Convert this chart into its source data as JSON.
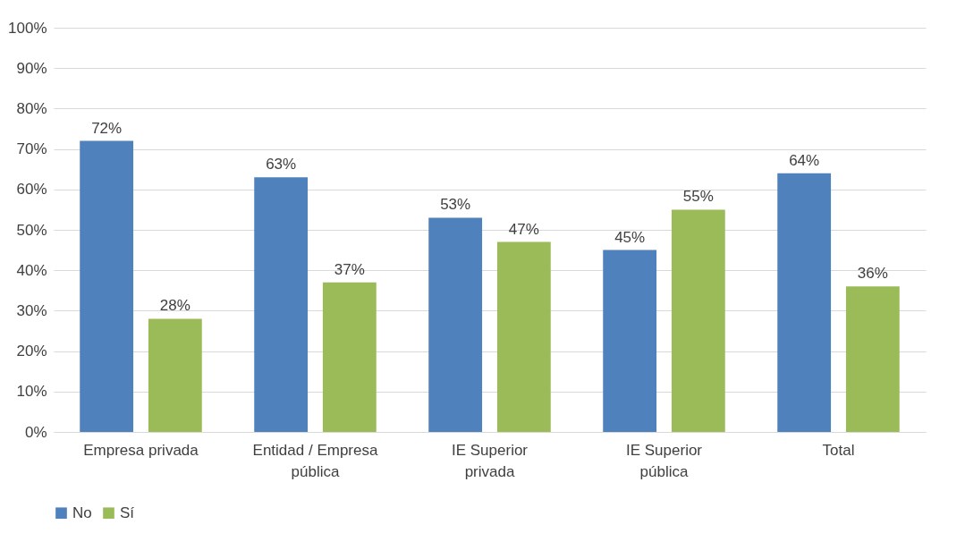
{
  "chart_data": {
    "type": "bar",
    "categories": [
      "Empresa privada",
      "Entidad / Empresa pública",
      "IE Superior privada",
      "IE Superior pública",
      "Total"
    ],
    "series": [
      {
        "name": "No",
        "color": "#4f81bd",
        "values": [
          72,
          63,
          53,
          45,
          64
        ],
        "value_labels": [
          "72%",
          "63%",
          "53%",
          "45%",
          "64%"
        ]
      },
      {
        "name": "Sí",
        "color": "#9bbb59",
        "values": [
          28,
          37,
          47,
          55,
          36
        ],
        "value_labels": [
          "28%",
          "37%",
          "47%",
          "55%",
          "36%"
        ]
      }
    ],
    "ylim": [
      0,
      100
    ],
    "yticks": [
      {
        "value": 0,
        "label": "0%"
      },
      {
        "value": 10,
        "label": "10%"
      },
      {
        "value": 20,
        "label": "20%"
      },
      {
        "value": 30,
        "label": "30%"
      },
      {
        "value": 40,
        "label": "40%"
      },
      {
        "value": 50,
        "label": "50%"
      },
      {
        "value": 60,
        "label": "60%"
      },
      {
        "value": 70,
        "label": "70%"
      },
      {
        "value": 80,
        "label": "80%"
      },
      {
        "value": 90,
        "label": "90%"
      },
      {
        "value": 100,
        "label": "100%"
      }
    ],
    "grid": "y",
    "legend": "bottom"
  }
}
